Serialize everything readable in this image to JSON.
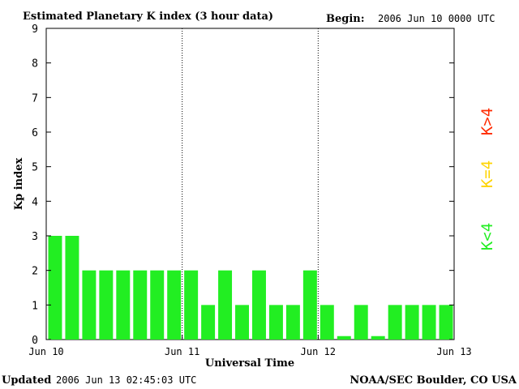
{
  "header": {
    "title": "Estimated Planetary K index (3 hour data)",
    "begin_label": "Begin:",
    "begin_value": "2006 Jun 10 0000 UTC"
  },
  "footer": {
    "updated_label": "Updated",
    "updated_value": "2006 Jun 13 02:45:03 UTC",
    "credit": "NOAA/SEC Boulder, CO USA"
  },
  "legend": {
    "items": [
      {
        "label": "K>4",
        "color": "#ff2a00"
      },
      {
        "label": "K=4",
        "color": "#ffd400"
      },
      {
        "label": "K<4",
        "color": "#22ee22"
      }
    ]
  },
  "chart_data": {
    "type": "bar",
    "ylabel": "Kp index",
    "xlabel": "Universal Time",
    "ylim": [
      0,
      9
    ],
    "yticks": [
      "0",
      "1",
      "2",
      "3",
      "4",
      "5",
      "6",
      "7",
      "8",
      "9"
    ],
    "xticks": [
      "Jun 10",
      "Jun 11",
      "Jun 12",
      "Jun 13"
    ],
    "days": 3,
    "bars_per_day": 8,
    "values": [
      3,
      3,
      2,
      2,
      2,
      2,
      2,
      2,
      2,
      1,
      2,
      1,
      2,
      1,
      1,
      2,
      1,
      0.1,
      1,
      0.1,
      1,
      1,
      1,
      1
    ],
    "bar_color": "#22ee22",
    "day_dividers": "dotted"
  }
}
